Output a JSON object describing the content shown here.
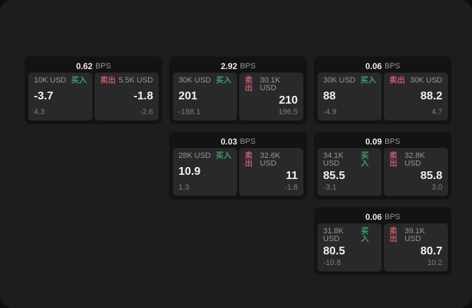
{
  "labels": {
    "bps": "BPS",
    "buy": "买入",
    "sell": "卖出"
  },
  "colors": {
    "window_bg": "#1d1d1e",
    "card_bg": "#131314",
    "panel_bg": "#29292b",
    "buy_green": "#3fa065",
    "sell_red": "#c35a67",
    "value_white": "#f1f1f2",
    "muted_gray": "#98989a"
  },
  "cards": [
    {
      "bps": "0.62",
      "buy": {
        "amount": "10K USD",
        "value": "-3.7",
        "sub": "4.3"
      },
      "sell": {
        "amount": "5.5K USD",
        "value": "-1.8",
        "sub": "-2.6"
      }
    },
    {
      "bps": "2.92",
      "buy": {
        "amount": "30K USD",
        "value": "201",
        "sub": "-188.1"
      },
      "sell": {
        "amount": "30.1K USD",
        "value": "210",
        "sub": "196.5"
      }
    },
    {
      "bps": "0.06",
      "buy": {
        "amount": "30K USD",
        "value": "88",
        "sub": "-4.9"
      },
      "sell": {
        "amount": "30K USD",
        "value": "88.2",
        "sub": "4.7"
      }
    },
    {
      "bps": "0.03",
      "buy": {
        "amount": "28K USD",
        "value": "10.9",
        "sub": "1.3"
      },
      "sell": {
        "amount": "32.6K USD",
        "value": "11",
        "sub": "-1.8"
      }
    },
    {
      "bps": "0.09",
      "buy": {
        "amount": "34.1K USD",
        "value": "85.5",
        "sub": "-3.1"
      },
      "sell": {
        "amount": "32.8K USD",
        "value": "85.8",
        "sub": "3.0"
      }
    },
    {
      "bps": "0.06",
      "buy": {
        "amount": "31.8K USD",
        "value": "80.5",
        "sub": "-10.8"
      },
      "sell": {
        "amount": "39.1K USD",
        "value": "80.7",
        "sub": "10.2"
      }
    }
  ]
}
